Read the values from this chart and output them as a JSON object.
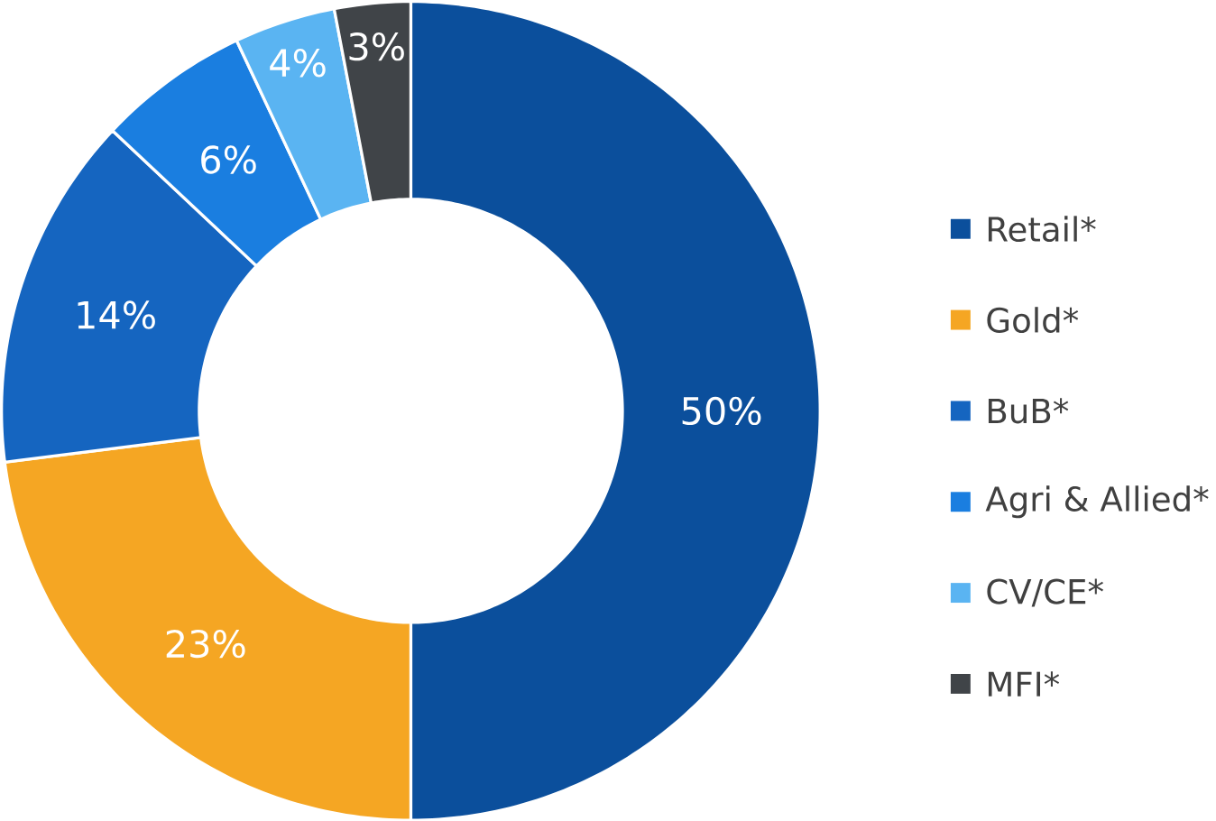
{
  "chart_data": {
    "type": "donut",
    "categories": [
      "Retail*",
      "Gold*",
      "BuB*",
      "Agri & Allied*",
      "CV/CE*",
      "MFI*"
    ],
    "values": [
      50,
      23,
      14,
      6,
      4,
      3
    ],
    "colors": [
      "#0b4f9c",
      "#f5a623",
      "#1565c0",
      "#1a7ee0",
      "#5ab4f2",
      "#404448"
    ],
    "value_labels": [
      "50%",
      "23%",
      "14%",
      "6%",
      "4%",
      "3%"
    ],
    "legend": "right"
  }
}
